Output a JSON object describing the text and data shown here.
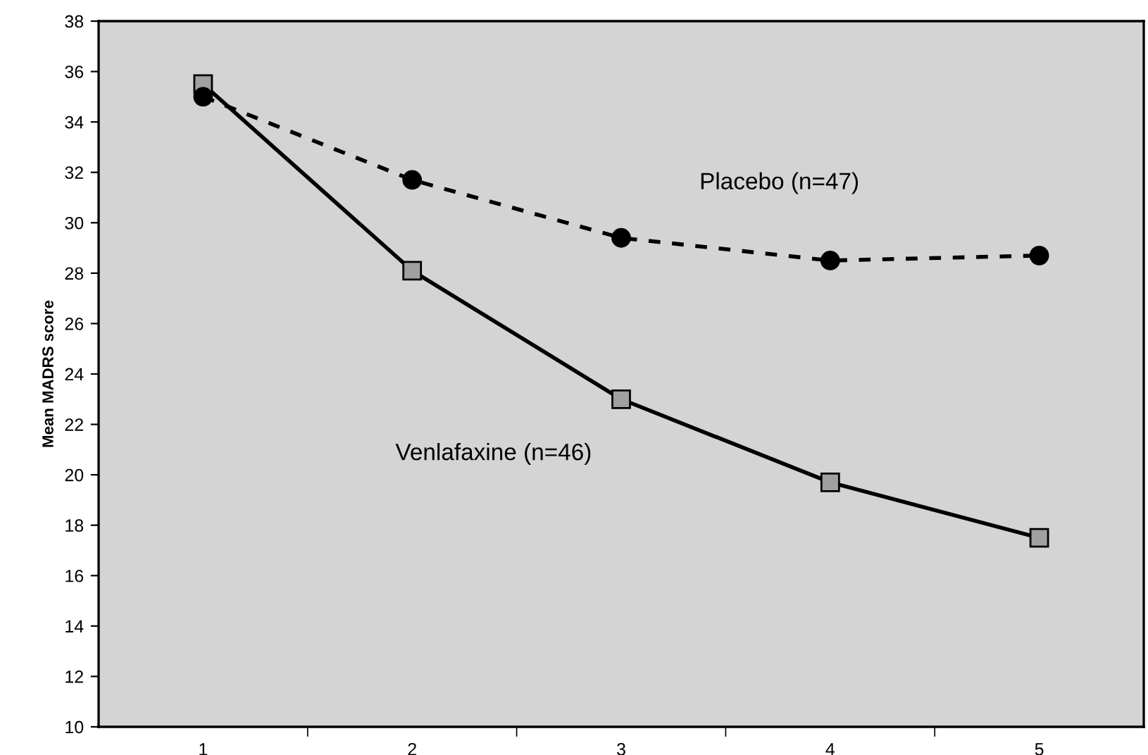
{
  "chart_data": {
    "type": "line",
    "ylabel": "Mean MADRS score",
    "categories": [
      "1",
      "2",
      "3",
      "4",
      "5"
    ],
    "series": [
      {
        "name": "Venlafaxine (n=46)",
        "color": "#000000",
        "marker": "square",
        "line_style": "solid",
        "values": [
          35.5,
          28.1,
          23.0,
          19.7,
          17.5
        ]
      },
      {
        "name": "Placebo (n=47)",
        "color": "#000000",
        "marker": "circle",
        "line_style": "dashed",
        "values": [
          35.0,
          31.7,
          29.4,
          28.5,
          28.7
        ]
      }
    ],
    "ylim": [
      10,
      38
    ],
    "yticks": [
      10,
      12,
      14,
      16,
      18,
      20,
      22,
      24,
      26,
      28,
      30,
      32,
      34,
      36,
      38
    ],
    "grid": false,
    "legend": false
  }
}
